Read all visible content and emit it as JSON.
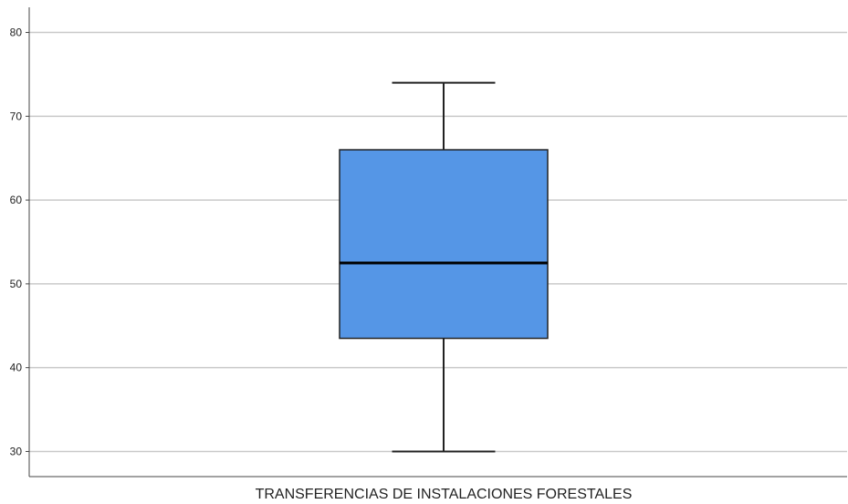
{
  "chart_data": {
    "type": "boxplot",
    "xlabel": "TRANSFERENCIAS DE INSTALACIONES FORESTALES",
    "ylabel": "",
    "ylim": [
      27,
      83
    ],
    "yticks": [
      30,
      40,
      50,
      60,
      70,
      80
    ],
    "grid": true,
    "box": {
      "min": 30,
      "q1": 43.5,
      "median": 52.5,
      "q3": 66,
      "max": 74
    },
    "colors": {
      "box_fill": "#5596e6",
      "box_stroke": "#222222",
      "median": "#000000",
      "grid": "#c9c9c9",
      "axis": "#444444"
    }
  }
}
